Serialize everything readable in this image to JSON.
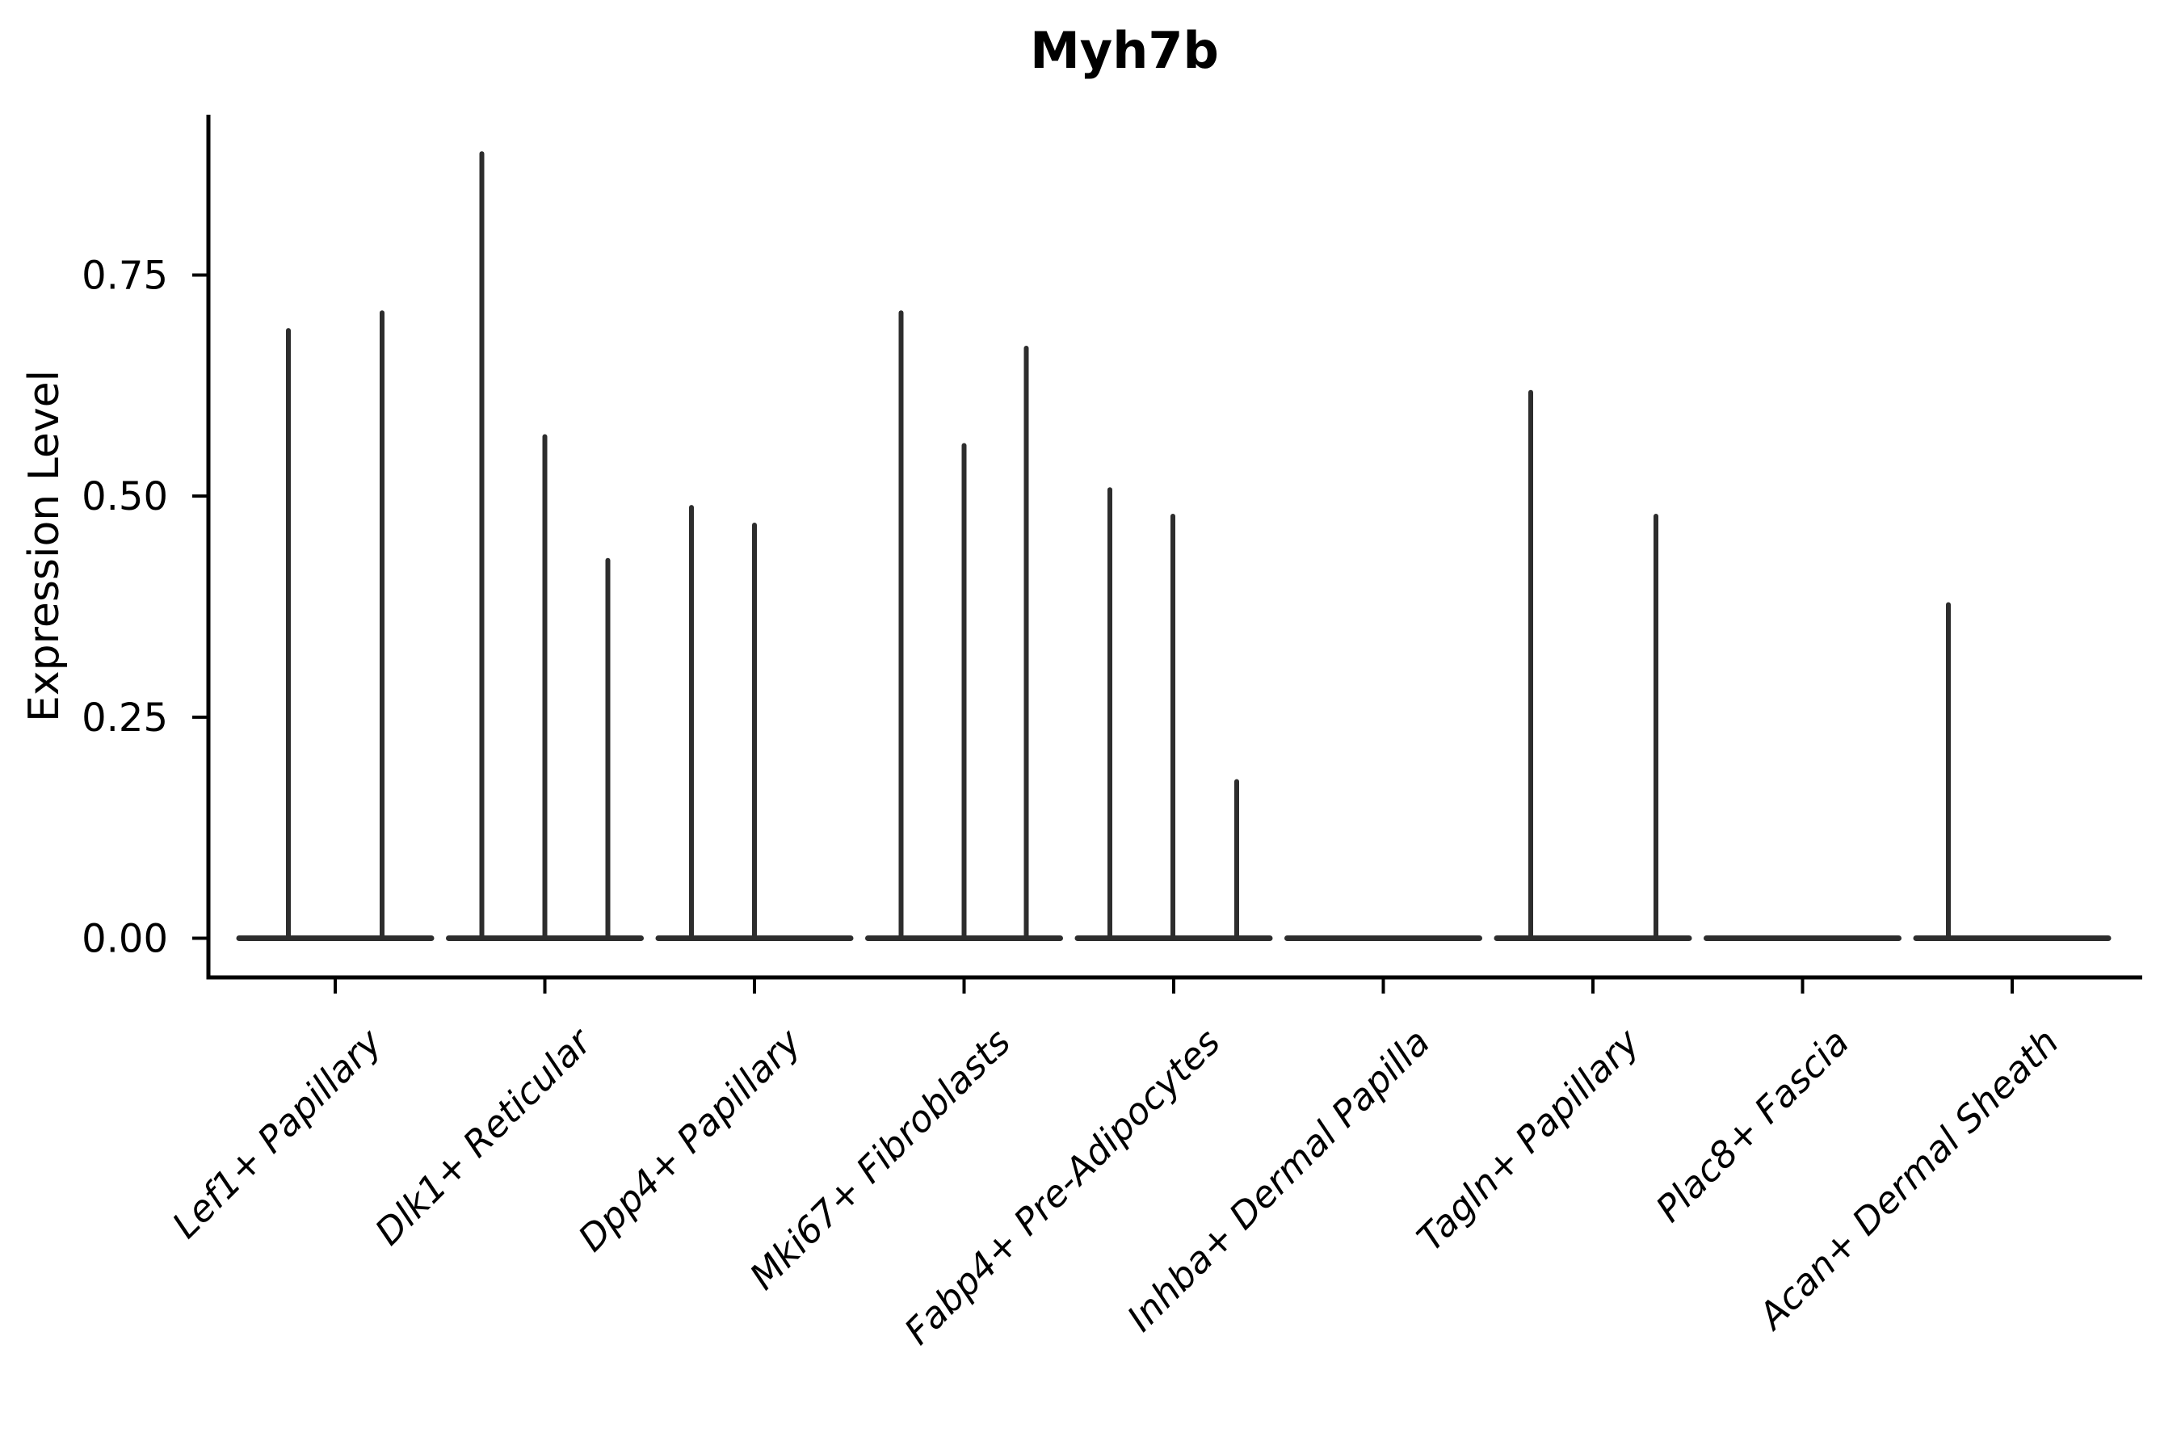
{
  "title": "Myh7b",
  "y_axis": {
    "label": "Expression Level",
    "ticks": [
      {
        "label": "0.00",
        "value": 0.0
      },
      {
        "label": "0.25",
        "value": 0.25
      },
      {
        "label": "0.50",
        "value": 0.5
      },
      {
        "label": "0.75",
        "value": 0.75
      }
    ]
  },
  "chart_data": {
    "type": "violin",
    "title": "Myh7b",
    "ylabel": "Expression Level",
    "xlabel": "",
    "ylim": [
      -0.044,
      0.931
    ],
    "grid": false,
    "legend": "none",
    "violin_color": "#2d2d2d",
    "axis_color": "#000000",
    "categories": [
      {
        "label": "Lef1+ Papillary",
        "spikes": [
          {
            "offset": -58,
            "max": 0.69
          },
          {
            "offset": 58,
            "max": 0.71
          }
        ]
      },
      {
        "label": "Dlk1+ Reticular",
        "spikes": [
          {
            "offset": -78,
            "max": 0.89
          },
          {
            "offset": 0,
            "max": 0.57
          },
          {
            "offset": 78,
            "max": 0.43
          }
        ]
      },
      {
        "label": "Dpp4+ Papillary",
        "spikes": [
          {
            "offset": -78,
            "max": 0.49
          },
          {
            "offset": 0,
            "max": 0.47
          }
        ]
      },
      {
        "label": "Mki67+ Fibroblasts",
        "spikes": [
          {
            "offset": -78,
            "max": 0.71
          },
          {
            "offset": 0,
            "max": 0.56
          },
          {
            "offset": 77,
            "max": 0.67
          }
        ]
      },
      {
        "label": "Fabp4+ Pre-Adipocytes",
        "spikes": [
          {
            "offset": -79,
            "max": 0.51
          },
          {
            "offset": -1,
            "max": 0.48
          },
          {
            "offset": 78,
            "max": 0.18
          }
        ]
      },
      {
        "label": "Inhba+ Dermal Papilla",
        "spikes": []
      },
      {
        "label": "Tagln+ Papillary",
        "spikes": [
          {
            "offset": -77,
            "max": 0.62
          },
          {
            "offset": 78,
            "max": 0.48
          }
        ]
      },
      {
        "label": "Plac8+ Fascia",
        "spikes": []
      },
      {
        "label": "Acan+ Dermal Sheath",
        "spikes": [
          {
            "offset": -79,
            "max": 0.38
          }
        ]
      }
    ]
  }
}
